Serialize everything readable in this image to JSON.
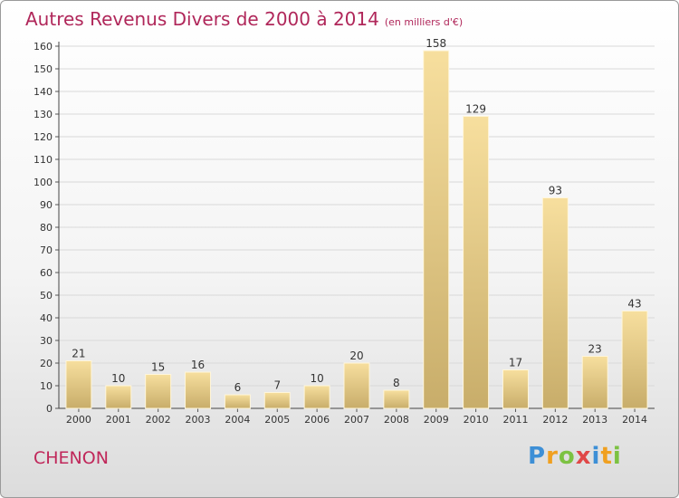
{
  "title": "Autres Revenus Divers de 2000 à 2014",
  "unit_label": "(en milliers d'€)",
  "place_name": "CHENON",
  "logo": {
    "letters": [
      "P",
      "r",
      "o",
      "x",
      "i",
      "t",
      "i"
    ],
    "colors": [
      "#3d8fd6",
      "#f0a020",
      "#7cc242",
      "#e04848",
      "#3d8fd6",
      "#f0a020",
      "#7cc242"
    ]
  },
  "colors": {
    "title": "#b0275a",
    "bar_light": "#f7df9e",
    "bar_dark": "#c8ad6a",
    "grid": "#d9d9d9"
  },
  "chart_data": {
    "type": "bar",
    "title": "Autres Revenus Divers de 2000 à 2014",
    "subtitle": "(en milliers d'€)",
    "categories": [
      "2000",
      "2001",
      "2002",
      "2003",
      "2004",
      "2005",
      "2006",
      "2007",
      "2008",
      "2009",
      "2010",
      "2011",
      "2012",
      "2013",
      "2014"
    ],
    "values": [
      21,
      10,
      15,
      16,
      6,
      7,
      10,
      20,
      8,
      158,
      129,
      17,
      93,
      23,
      43
    ],
    "ylim": [
      0,
      160
    ],
    "yticks": [
      0,
      10,
      20,
      30,
      40,
      50,
      60,
      70,
      80,
      90,
      100,
      110,
      120,
      130,
      140,
      150,
      160
    ],
    "xlabel": "",
    "ylabel": "",
    "grid": true,
    "data_labels": true
  }
}
